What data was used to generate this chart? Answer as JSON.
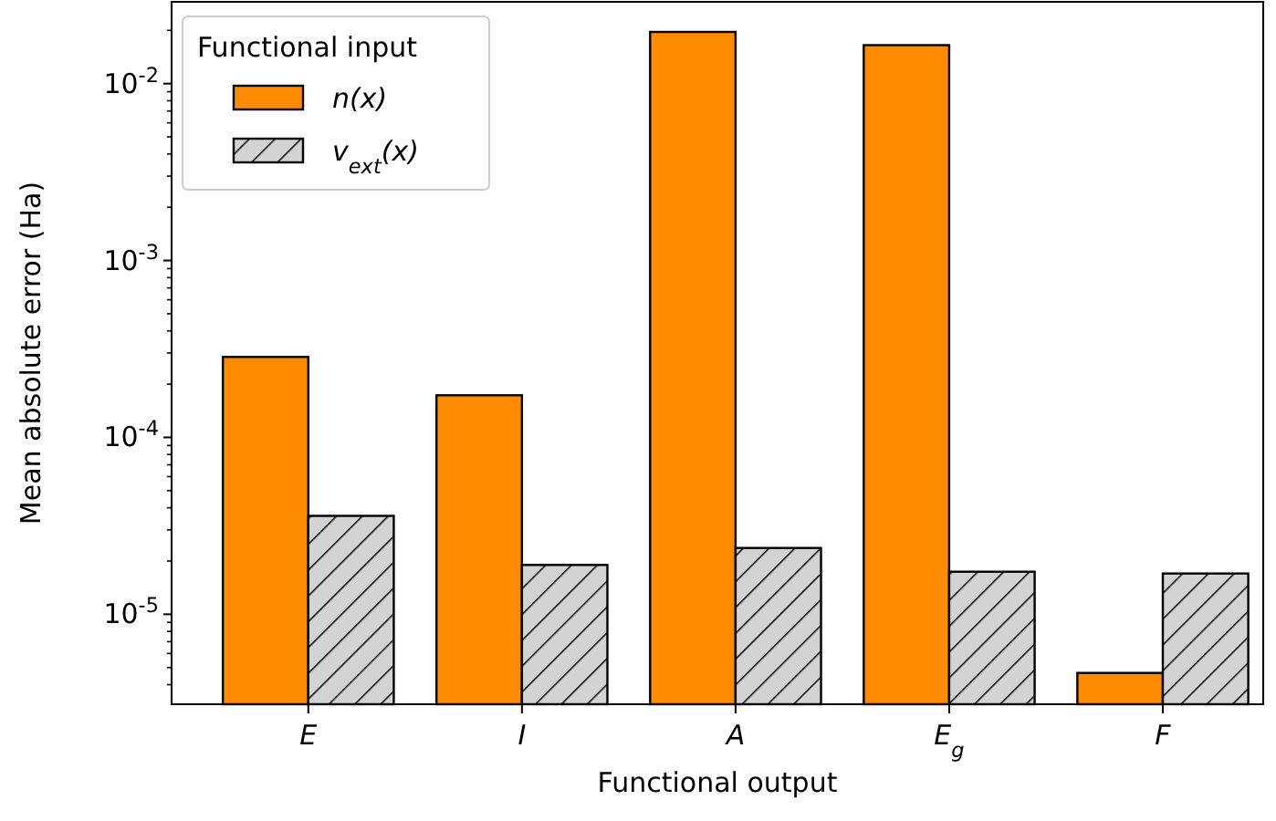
{
  "chart_data": {
    "type": "bar",
    "xlabel": "Functional output",
    "ylabel": "Mean absolute error (Ha)",
    "legend_title": "Functional input",
    "categories": [
      "E",
      "I",
      "A",
      "E$_{g}$",
      "F"
    ],
    "series": [
      {
        "name": "n(x)",
        "color": "#ff8c00",
        "values": [
          0.000285,
          0.000173,
          0.0196,
          0.0165,
          4.66e-06
        ]
      },
      {
        "name": "v$_{ext}$(x)",
        "color": "#d3d3d3",
        "values": [
          3.6e-05,
          1.9e-05,
          2.37e-05,
          1.74e-05,
          1.7e-05
        ]
      }
    ],
    "log": true,
    "ylim": [
      3.1e-06,
      0.029
    ],
    "yticks": [
      {
        "value": 1e-05,
        "label": "10$^{-5}$"
      },
      {
        "value": 0.0001,
        "label": "10$^{-4}$"
      },
      {
        "value": 0.001,
        "label": "10$^{-3}$"
      },
      {
        "value": 0.01,
        "label": "10$^{-2}$"
      },
      {
        "value": 4e-06,
        "label": null
      },
      {
        "value": 5e-06,
        "label": null
      },
      {
        "value": 6e-06,
        "label": null
      },
      {
        "value": 7e-06,
        "label": null
      },
      {
        "value": 8e-06,
        "label": null
      },
      {
        "value": 9e-06,
        "label": null
      },
      {
        "value": 2e-05,
        "label": null
      },
      {
        "value": 3e-05,
        "label": null
      },
      {
        "value": 4e-05,
        "label": null
      },
      {
        "value": 5e-05,
        "label": null
      },
      {
        "value": 6e-05,
        "label": null
      },
      {
        "value": 7e-05,
        "label": null
      },
      {
        "value": 8e-05,
        "label": null
      },
      {
        "value": 9e-05,
        "label": null
      },
      {
        "value": 0.0002,
        "label": null
      },
      {
        "value": 0.0003,
        "label": null
      },
      {
        "value": 0.0004,
        "label": null
      },
      {
        "value": 0.0005,
        "label": null
      },
      {
        "value": 0.0006,
        "label": null
      },
      {
        "value": 0.0007,
        "label": null
      },
      {
        "value": 0.0008,
        "label": null
      },
      {
        "value": 0.0009,
        "label": null
      },
      {
        "value": 0.002,
        "label": null
      },
      {
        "value": 0.003,
        "label": null
      },
      {
        "value": 0.004,
        "label": null
      },
      {
        "value": 0.005,
        "label": null
      },
      {
        "value": 0.006,
        "label": null
      },
      {
        "value": 0.007,
        "label": null
      },
      {
        "value": 0.008,
        "label": null
      },
      {
        "value": 0.009,
        "label": null
      },
      {
        "value": 0.02,
        "label": null
      }
    ],
    "legend": "top left",
    "grid": false
  }
}
